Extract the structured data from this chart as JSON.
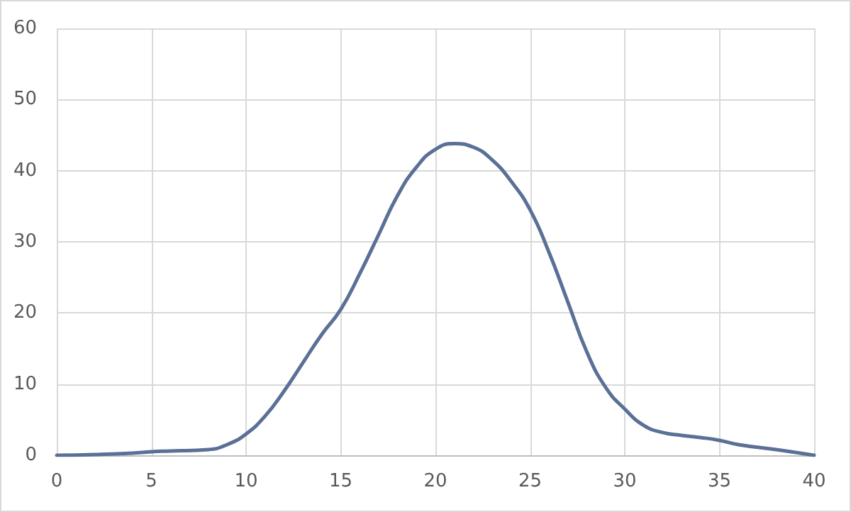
{
  "chart_data": {
    "type": "line",
    "x": [
      0,
      2,
      4,
      5,
      6,
      8,
      9,
      10,
      11,
      12,
      13,
      14,
      15,
      16,
      17,
      18,
      19,
      20,
      21,
      22,
      23,
      24,
      25,
      26,
      27,
      28,
      29,
      30,
      31,
      32,
      33,
      34,
      35,
      36,
      38,
      40
    ],
    "series": [
      {
        "color": "#5b7096",
        "values": [
          0,
          0.1,
          0.3,
          0.5,
          0.6,
          0.8,
          1.5,
          3,
          5.5,
          9,
          13,
          17,
          20.5,
          25.5,
          31,
          36.5,
          40.5,
          43,
          43.8,
          43.3,
          41.5,
          38.5,
          34.5,
          28.5,
          21.5,
          14.5,
          9.5,
          6.5,
          4.2,
          3.2,
          2.8,
          2.5,
          2.1,
          1.5,
          0.8,
          0
        ]
      }
    ],
    "xlim": [
      0,
      40
    ],
    "xticks": [
      0,
      5,
      10,
      15,
      20,
      25,
      30,
      35,
      40
    ],
    "ylim": [
      0,
      60
    ],
    "yticks": [
      0,
      10,
      20,
      30,
      40,
      50,
      60
    ],
    "grid": true,
    "marker": "none",
    "line_style": "solid"
  }
}
